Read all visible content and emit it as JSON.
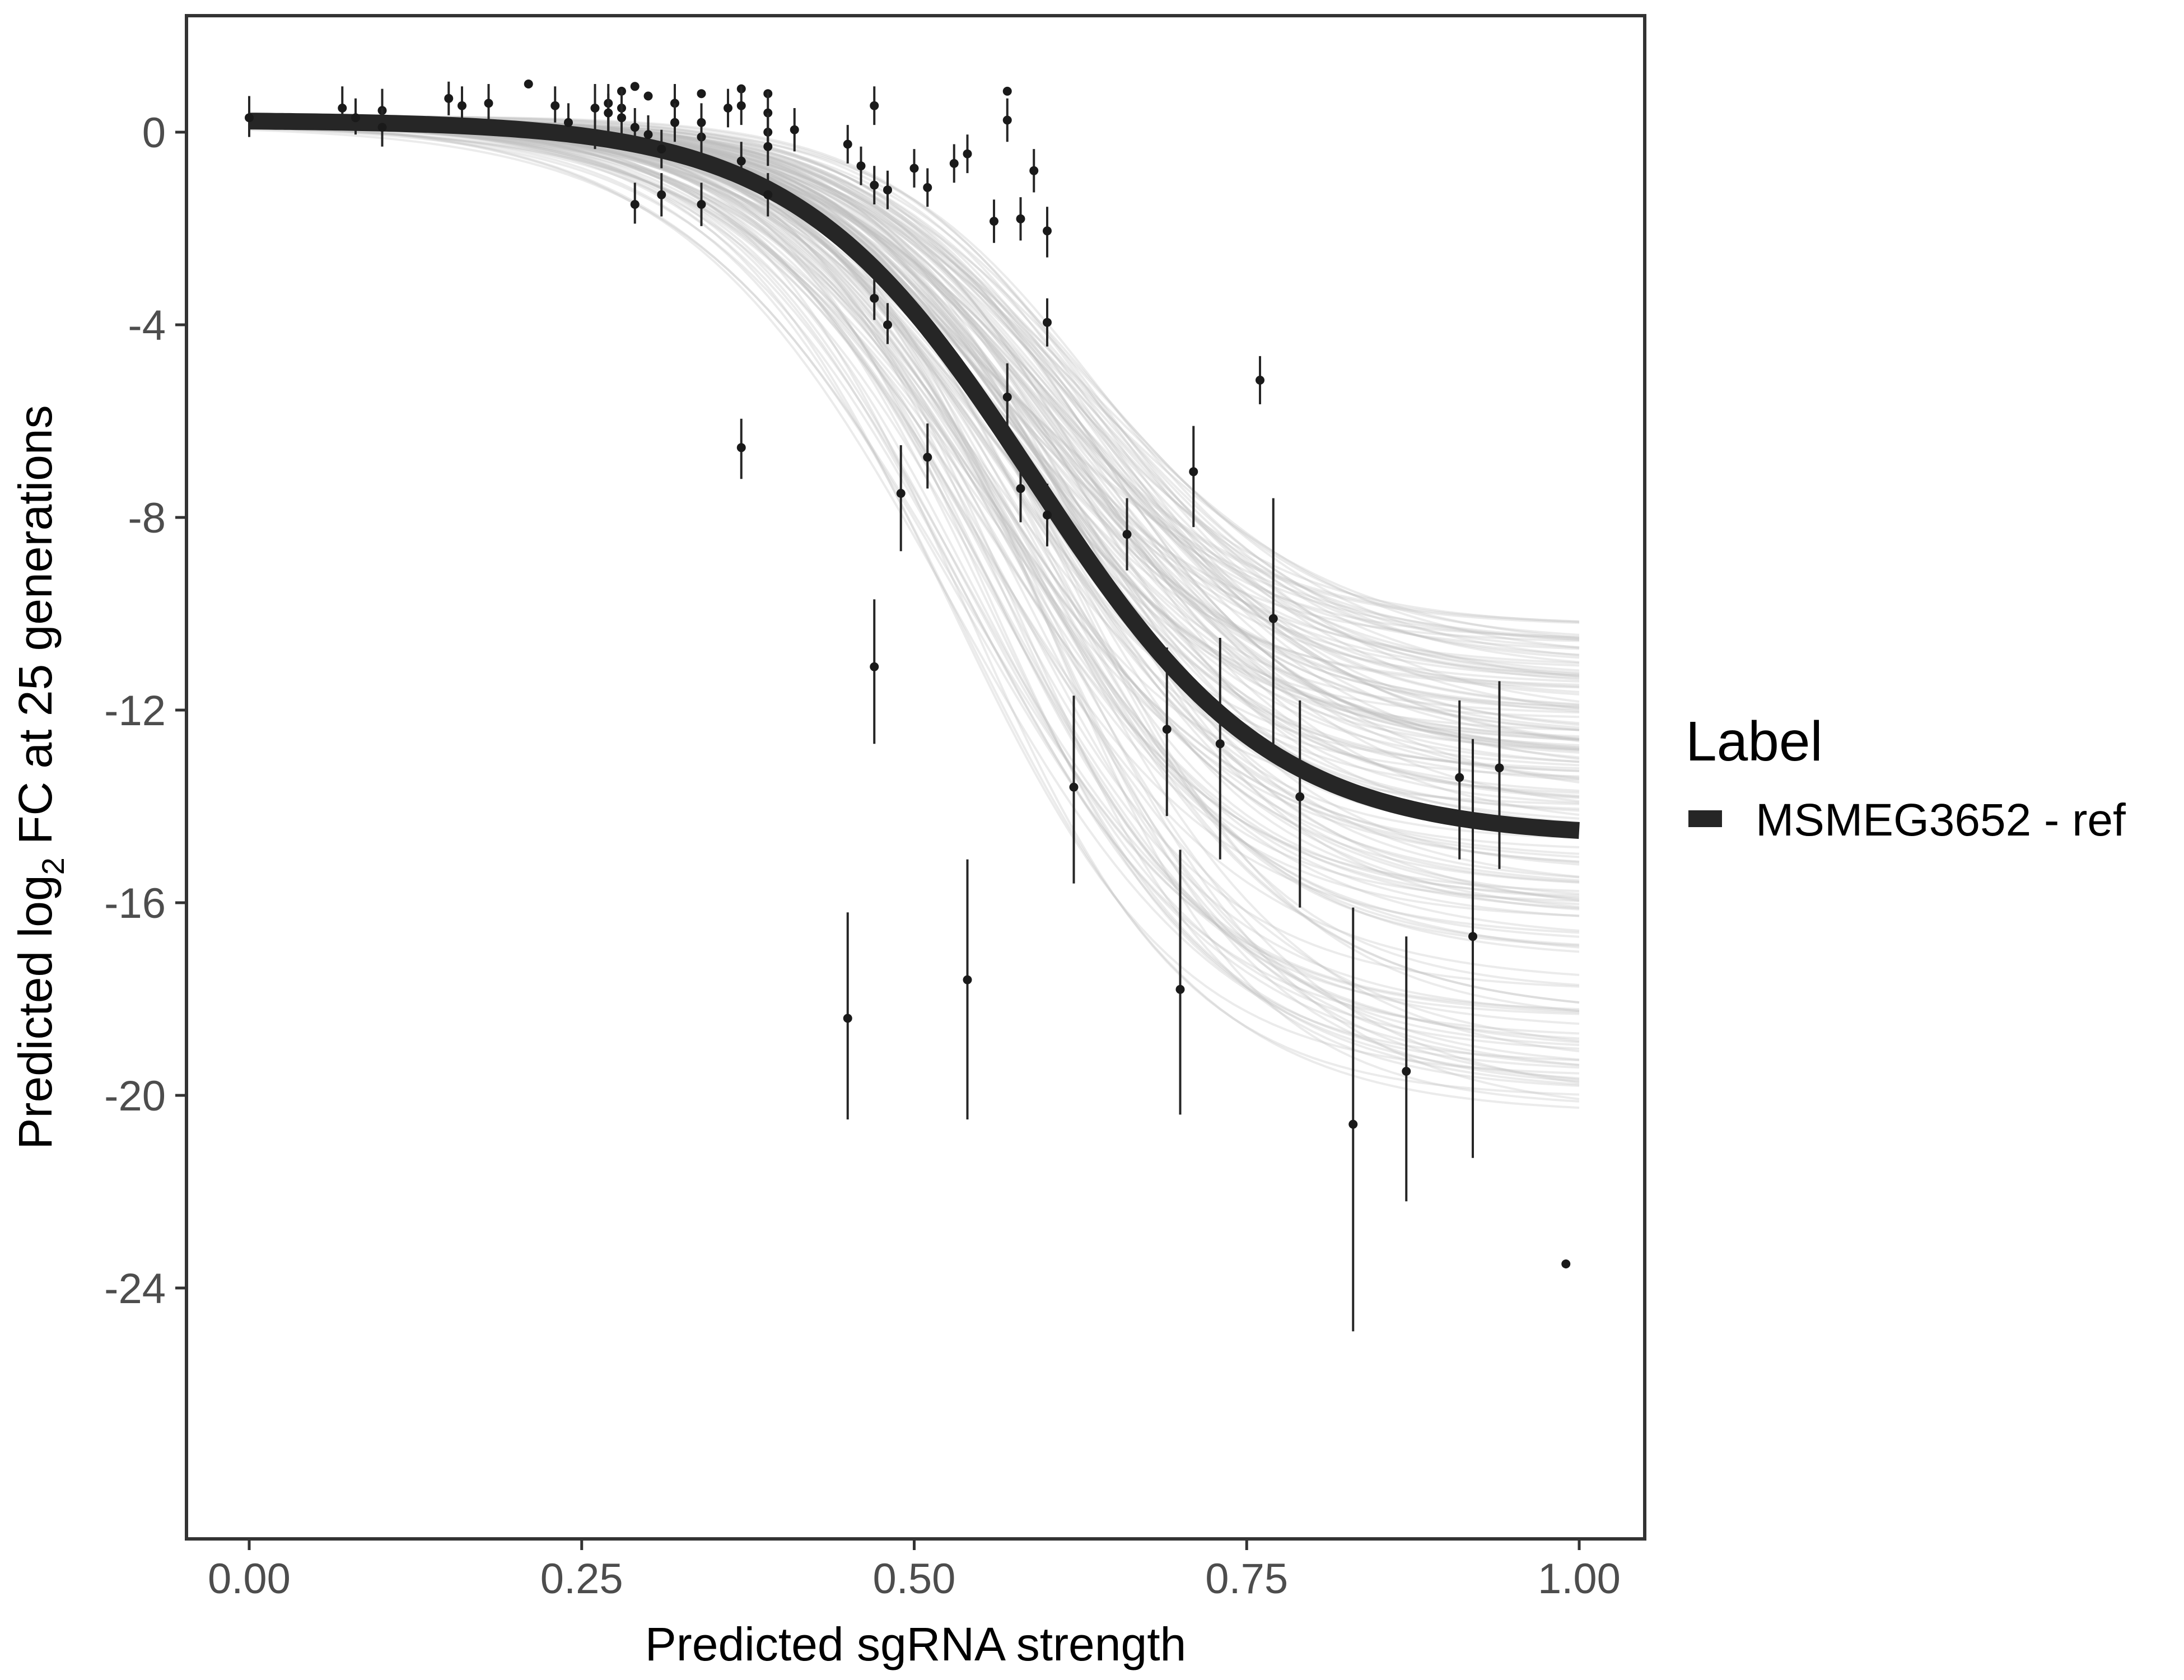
{
  "chart_data": {
    "type": "scatter",
    "xlabel": "Predicted sgRNA strength",
    "ylabel": {
      "prefix": "Predicted  log",
      "subscript": "2",
      "suffix": " FC at 25 generations"
    },
    "xlim": [
      -0.12,
      2.62
    ],
    "ylim": [
      -29.5,
      2.5
    ],
    "x_ticks": [
      0,
      0.25,
      0.5,
      0.75,
      1
    ],
    "x_tick_labels": [
      "0.00",
      "0.25",
      "0.50",
      "0.75",
      "1.00"
    ],
    "y_ticks": [
      0,
      -4,
      -8,
      -12,
      -16,
      -20,
      -24
    ],
    "y_tick_labels": [
      "0",
      "-4",
      "-8",
      "-12",
      "-16",
      "-20",
      "-24"
    ],
    "grid": false,
    "legend": {
      "title": "Label",
      "position": "right",
      "entries": [
        "MSMEG3652 - ref"
      ]
    },
    "fit": {
      "name": "MSMEG3652 - ref",
      "model": "logistic",
      "upper": 0.25,
      "lower": -14.65,
      "midpoint": 0.59,
      "slope": 11.2,
      "color": "#262626"
    },
    "posterior_draws": {
      "color": "#bdbdbd",
      "count": 160,
      "lower_range": [
        -20.4,
        -10.2
      ]
    },
    "points": [
      {
        "x": 0.0,
        "y": 0.3,
        "lo": -0.1,
        "hi": 0.75
      },
      {
        "x": 0.07,
        "y": 0.5,
        "lo": 0.15,
        "hi": 0.95
      },
      {
        "x": 0.08,
        "y": 0.3,
        "lo": -0.05,
        "hi": 0.7
      },
      {
        "x": 0.1,
        "y": 0.45,
        "lo": 0.1,
        "hi": 0.9
      },
      {
        "x": 0.1,
        "y": 0.1,
        "lo": -0.3,
        "hi": 0.5
      },
      {
        "x": 0.15,
        "y": 0.7,
        "lo": 0.35,
        "hi": 1.05
      },
      {
        "x": 0.16,
        "y": 0.55,
        "lo": 0.2,
        "hi": 0.95
      },
      {
        "x": 0.18,
        "y": 0.6,
        "lo": 0.25,
        "hi": 1.0
      },
      {
        "x": 0.21,
        "y": 1.0
      },
      {
        "x": 0.23,
        "y": 0.55,
        "lo": 0.2,
        "hi": 0.95
      },
      {
        "x": 0.24,
        "y": 0.2,
        "lo": -0.2,
        "hi": 0.6
      },
      {
        "x": 0.26,
        "y": 0.5,
        "lo": -0.35,
        "hi": 1.0
      },
      {
        "x": 0.27,
        "y": 0.6,
        "lo": -0.3,
        "hi": 1.0
      },
      {
        "x": 0.27,
        "y": 0.4,
        "lo": 0.0,
        "hi": 0.8
      },
      {
        "x": 0.28,
        "y": 0.85
      },
      {
        "x": 0.28,
        "y": 0.5,
        "lo": 0.15,
        "hi": 0.9
      },
      {
        "x": 0.28,
        "y": 0.3,
        "lo": -0.1,
        "hi": 0.7
      },
      {
        "x": 0.29,
        "y": 0.95
      },
      {
        "x": 0.29,
        "y": 0.1,
        "lo": -0.3,
        "hi": 0.5
      },
      {
        "x": 0.29,
        "y": -1.5,
        "lo": -1.9,
        "hi": -1.05
      },
      {
        "x": 0.3,
        "y": 0.75
      },
      {
        "x": 0.31,
        "y": -1.3,
        "lo": -1.75,
        "hi": -0.85
      },
      {
        "x": 0.3,
        "y": -0.05,
        "lo": -0.4,
        "hi": 0.35
      },
      {
        "x": 0.31,
        "y": -0.35,
        "lo": -0.75,
        "hi": 0.05
      },
      {
        "x": 0.32,
        "y": 0.6,
        "lo": 0.2,
        "hi": 1.0
      },
      {
        "x": 0.32,
        "y": 0.2,
        "lo": -0.2,
        "hi": 0.6
      },
      {
        "x": 0.34,
        "y": 0.8
      },
      {
        "x": 0.34,
        "y": -0.1,
        "lo": -0.5,
        "hi": 0.3
      },
      {
        "x": 0.34,
        "y": -1.5,
        "lo": -1.95,
        "hi": -1.05
      },
      {
        "x": 0.34,
        "y": 0.2,
        "lo": -0.2,
        "hi": 0.6
      },
      {
        "x": 0.36,
        "y": 0.5,
        "lo": 0.1,
        "hi": 0.9
      },
      {
        "x": 0.37,
        "y": 0.9
      },
      {
        "x": 0.37,
        "y": 0.55,
        "lo": 0.15,
        "hi": 0.95
      },
      {
        "x": 0.37,
        "y": -0.6,
        "lo": -1.0,
        "hi": -0.2
      },
      {
        "x": 0.37,
        "y": -6.55,
        "lo": -7.2,
        "hi": -5.95
      },
      {
        "x": 0.39,
        "y": 0.8
      },
      {
        "x": 0.39,
        "y": 0.4,
        "lo": -0.05,
        "hi": 0.85
      },
      {
        "x": 0.39,
        "y": 0.0,
        "lo": -0.4,
        "hi": 0.4
      },
      {
        "x": 0.39,
        "y": -0.3,
        "lo": -0.7,
        "hi": 0.1
      },
      {
        "x": 0.39,
        "y": -1.3,
        "lo": -1.75,
        "hi": -0.85
      },
      {
        "x": 0.41,
        "y": 0.05,
        "lo": -0.4,
        "hi": 0.5
      },
      {
        "x": 0.45,
        "y": -0.25,
        "lo": -0.65,
        "hi": 0.15
      },
      {
        "x": 0.45,
        "y": -18.4,
        "lo": -20.5,
        "hi": -16.2
      },
      {
        "x": 0.46,
        "y": -0.7,
        "lo": -1.1,
        "hi": -0.3
      },
      {
        "x": 0.47,
        "y": 0.55,
        "lo": 0.15,
        "hi": 0.95
      },
      {
        "x": 0.47,
        "y": -1.1,
        "lo": -1.5,
        "hi": -0.7
      },
      {
        "x": 0.47,
        "y": -3.45,
        "lo": -3.9,
        "hi": -3.0
      },
      {
        "x": 0.47,
        "y": -11.1,
        "lo": -12.7,
        "hi": -9.7
      },
      {
        "x": 0.48,
        "y": -1.2,
        "lo": -1.6,
        "hi": -0.8
      },
      {
        "x": 0.48,
        "y": -4.0,
        "lo": -4.4,
        "hi": -3.55
      },
      {
        "x": 0.49,
        "y": -7.5,
        "lo": -8.7,
        "hi": -6.5
      },
      {
        "x": 0.5,
        "y": -0.75,
        "lo": -1.15,
        "hi": -0.35
      },
      {
        "x": 0.51,
        "y": -1.15,
        "lo": -1.55,
        "hi": -0.75
      },
      {
        "x": 0.51,
        "y": -6.75,
        "lo": -7.4,
        "hi": -6.05
      },
      {
        "x": 0.53,
        "y": -0.65,
        "lo": -1.05,
        "hi": -0.25
      },
      {
        "x": 0.54,
        "y": -0.45,
        "lo": -0.85,
        "hi": -0.05
      },
      {
        "x": 0.54,
        "y": -17.6,
        "lo": -20.5,
        "hi": -15.1
      },
      {
        "x": 0.56,
        "y": -1.85,
        "lo": -2.3,
        "hi": -1.4
      },
      {
        "x": 0.57,
        "y": 0.85
      },
      {
        "x": 0.57,
        "y": 0.25,
        "lo": -0.2,
        "hi": 0.7
      },
      {
        "x": 0.57,
        "y": -5.5,
        "lo": -6.3,
        "hi": -4.8
      },
      {
        "x": 0.58,
        "y": -7.4,
        "lo": -8.1,
        "hi": -6.7
      },
      {
        "x": 0.58,
        "y": -1.8,
        "lo": -2.25,
        "hi": -1.35
      },
      {
        "x": 0.59,
        "y": -0.8,
        "lo": -1.25,
        "hi": -0.35
      },
      {
        "x": 0.6,
        "y": -2.05,
        "lo": -2.6,
        "hi": -1.55
      },
      {
        "x": 0.6,
        "y": -3.95,
        "lo": -4.45,
        "hi": -3.45
      },
      {
        "x": 0.6,
        "y": -7.95,
        "lo": -8.6,
        "hi": -7.3
      },
      {
        "x": 0.62,
        "y": -13.6,
        "lo": -15.6,
        "hi": -11.7
      },
      {
        "x": 0.66,
        "y": -8.35,
        "lo": -9.1,
        "hi": -7.6
      },
      {
        "x": 0.69,
        "y": -12.4,
        "lo": -14.2,
        "hi": -10.7
      },
      {
        "x": 0.7,
        "y": -17.8,
        "lo": -20.4,
        "hi": -14.9
      },
      {
        "x": 0.71,
        "y": -7.05,
        "lo": -8.2,
        "hi": -6.1
      },
      {
        "x": 0.73,
        "y": -12.7,
        "lo": -15.1,
        "hi": -10.5
      },
      {
        "x": 0.76,
        "y": -5.15,
        "lo": -5.65,
        "hi": -4.65
      },
      {
        "x": 0.77,
        "y": -10.1,
        "lo": -12.8,
        "hi": -7.6
      },
      {
        "x": 0.79,
        "y": -13.8,
        "lo": -16.1,
        "hi": -11.8
      },
      {
        "x": 0.83,
        "y": -20.6,
        "lo": -24.9,
        "hi": -16.1
      },
      {
        "x": 0.87,
        "y": -19.5,
        "lo": -22.2,
        "hi": -16.7
      },
      {
        "x": 0.91,
        "y": -13.4,
        "lo": -15.1,
        "hi": -11.8
      },
      {
        "x": 0.92,
        "y": -16.7,
        "lo": -21.3,
        "hi": -12.6
      },
      {
        "x": 0.94,
        "y": -13.2,
        "lo": -15.3,
        "hi": -11.4
      },
      {
        "x": 0.99,
        "y": -23.5
      }
    ]
  }
}
